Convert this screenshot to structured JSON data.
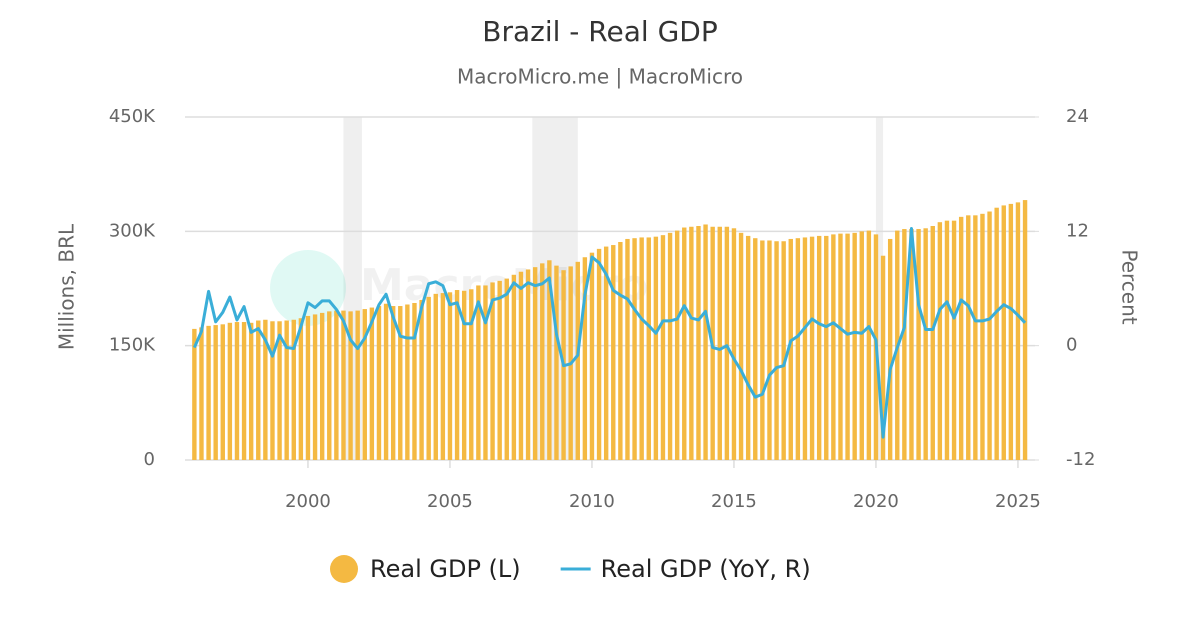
{
  "chart_data": {
    "type": "bar-line",
    "title": "Brazil - Real GDP",
    "subtitle": "MacroMicro.me | MacroMicro",
    "watermark": "MacroMicro",
    "y_label": "Millions, BRL",
    "y2_label": "Percent",
    "xlim": [
      1995.67,
      2025.6
    ],
    "xticks": [
      2000,
      2005,
      2010,
      2015,
      2020,
      2025
    ],
    "ylim": [
      0,
      450000
    ],
    "yticks": [
      {
        "value": 0,
        "label": "0"
      },
      {
        "value": 150000,
        "label": "150K"
      },
      {
        "value": 300000,
        "label": "300K"
      },
      {
        "value": 450000,
        "label": "450K"
      }
    ],
    "y2lim": [
      -12,
      24
    ],
    "y2ticks": [
      -12,
      0,
      12,
      24
    ],
    "grid": true,
    "legend": "bottom",
    "shaded": [
      [
        2001.25,
        2001.9
      ],
      [
        2007.9,
        2009.5
      ],
      [
        2020,
        2020.25
      ]
    ],
    "x": [
      1996,
      1996.25,
      1996.5,
      1996.75,
      1997,
      1997.25,
      1997.5,
      1997.75,
      1998,
      1998.25,
      1998.5,
      1998.75,
      1999,
      1999.25,
      1999.5,
      1999.75,
      2000,
      2000.25,
      2000.5,
      2000.75,
      2001,
      2001.25,
      2001.5,
      2001.75,
      2002,
      2002.25,
      2002.5,
      2002.75,
      2003,
      2003.25,
      2003.5,
      2003.75,
      2004,
      2004.25,
      2004.5,
      2004.75,
      2005,
      2005.25,
      2005.5,
      2005.75,
      2006,
      2006.25,
      2006.5,
      2006.75,
      2007,
      2007.25,
      2007.5,
      2007.75,
      2008,
      2008.25,
      2008.5,
      2008.75,
      2009,
      2009.25,
      2009.5,
      2009.75,
      2010,
      2010.25,
      2010.5,
      2010.75,
      2011,
      2011.25,
      2011.5,
      2011.75,
      2012,
      2012.25,
      2012.5,
      2012.75,
      2013,
      2013.25,
      2013.5,
      2013.75,
      2014,
      2014.25,
      2014.5,
      2014.75,
      2015,
      2015.25,
      2015.5,
      2015.75,
      2016,
      2016.25,
      2016.5,
      2016.75,
      2017,
      2017.25,
      2017.5,
      2017.75,
      2018,
      2018.25,
      2018.5,
      2018.75,
      2019,
      2019.25,
      2019.5,
      2019.75,
      2020,
      2020.25,
      2020.5,
      2020.75,
      2021,
      2021.25,
      2021.5,
      2021.75,
      2022,
      2022.25,
      2022.5,
      2022.75,
      2023,
      2023.25,
      2023.5,
      2023.75,
      2024,
      2024.25,
      2024.5,
      2024.75,
      2025,
      2025.25
    ],
    "series": [
      {
        "name": "Real GDP (L)",
        "type": "bar",
        "color": "#f4b942",
        "values": [
          172000,
          174000,
          176000,
          177000,
          178000,
          180000,
          181000,
          181000,
          180000,
          183000,
          184000,
          182000,
          182000,
          183000,
          184000,
          186000,
          189000,
          191000,
          193000,
          195000,
          196000,
          196000,
          195000,
          196000,
          198000,
          200000,
          202000,
          205000,
          202000,
          202000,
          204000,
          206000,
          210000,
          214000,
          218000,
          219000,
          220000,
          223000,
          222000,
          224000,
          229000,
          229000,
          233000,
          235000,
          238000,
          243000,
          247000,
          250000,
          253000,
          258000,
          262000,
          255000,
          249000,
          254000,
          260000,
          266000,
          272000,
          277000,
          280000,
          282000,
          286000,
          290000,
          291000,
          292000,
          292000,
          293000,
          295000,
          298000,
          301000,
          305000,
          306000,
          307000,
          309000,
          306000,
          306000,
          306000,
          304000,
          298000,
          294000,
          291000,
          288000,
          288000,
          287000,
          287000,
          290000,
          291000,
          292000,
          293000,
          294000,
          294000,
          296000,
          297000,
          297000,
          298000,
          300000,
          301000,
          296000,
          268000,
          290000,
          301000,
          303000,
          303000,
          303000,
          304000,
          307000,
          312000,
          314000,
          314000,
          319000,
          321000,
          321000,
          323000,
          326000,
          331000,
          334000,
          336000,
          338000,
          341000
        ]
      },
      {
        "name": "Real GDP (YoY, R)",
        "type": "line",
        "axis": "y2",
        "color": "#3aaed8",
        "values": [
          -0.2,
          1.5,
          5.7,
          2.5,
          3.5,
          5.1,
          2.7,
          4.1,
          1.4,
          1.8,
          0.6,
          -1.1,
          1.1,
          -0.2,
          -0.3,
          2.0,
          4.5,
          4.0,
          4.7,
          4.7,
          3.8,
          2.6,
          0.6,
          -0.3,
          0.8,
          2.5,
          4.3,
          5.4,
          3.0,
          1.0,
          0.8,
          0.8,
          4.0,
          6.5,
          6.7,
          6.3,
          4.3,
          4.5,
          2.3,
          2.3,
          4.6,
          2.4,
          4.8,
          5.0,
          5.4,
          6.6,
          6.0,
          6.6,
          6.3,
          6.5,
          7.1,
          1.2,
          -2.1,
          -1.9,
          -1.0,
          5.3,
          9.3,
          8.7,
          7.5,
          5.8,
          5.3,
          4.9,
          3.8,
          2.8,
          2.1,
          1.3,
          2.6,
          2.6,
          2.8,
          4.2,
          2.9,
          2.7,
          3.6,
          -0.2,
          -0.4,
          0.0,
          -1.4,
          -2.6,
          -4.1,
          -5.4,
          -5.1,
          -3.1,
          -2.3,
          -2.1,
          0.5,
          1.0,
          1.9,
          2.8,
          2.3,
          2.0,
          2.4,
          1.8,
          1.2,
          1.4,
          1.3,
          2.0,
          0.6,
          -9.6,
          -2.5,
          -0.2,
          1.9,
          12.3,
          4.3,
          1.7,
          1.7,
          3.8,
          4.6,
          2.9,
          4.8,
          4.2,
          2.6,
          2.6,
          2.8,
          3.6,
          4.3,
          3.9,
          3.2,
          2.4
        ]
      }
    ]
  }
}
